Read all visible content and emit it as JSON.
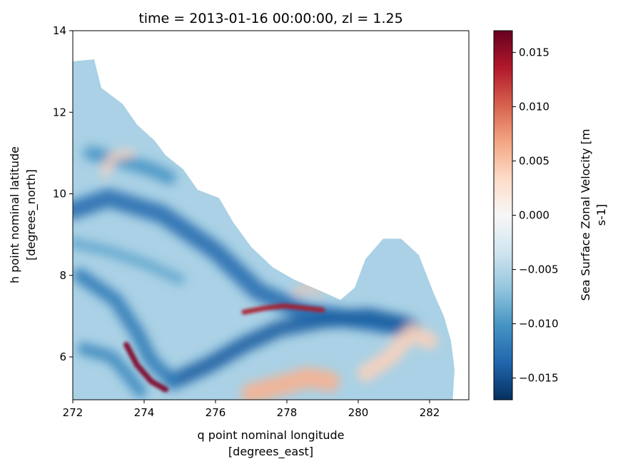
{
  "chart_data": {
    "type": "heatmap",
    "title": "time = 2013-01-16 00:00:00, zl = 1.25",
    "xlabel": "q point nominal longitude",
    "xlabel_units": "[degrees_east]",
    "ylabel": "h point nominal latitude",
    "ylabel_units": "[degrees_north]",
    "xlim": [
      272,
      283.1
    ],
    "ylim": [
      4.95,
      14
    ],
    "x_ticks": [
      272,
      274,
      276,
      278,
      280,
      282
    ],
    "x_tick_labels": [
      "272",
      "274",
      "276",
      "278",
      "280",
      "282"
    ],
    "y_ticks": [
      6,
      8,
      10,
      12,
      14
    ],
    "y_tick_labels": [
      "6",
      "8",
      "10",
      "12",
      "14"
    ],
    "colorbar": {
      "label_line1": "Sea Surface Zonal Velocity [m",
      "label_line2": "s-1]",
      "vmin": -0.017,
      "vmax": 0.017,
      "ticks": [
        -0.015,
        -0.01,
        -0.005,
        0,
        0.005,
        0.01,
        0.015
      ],
      "tick_labels": [
        "−0.015",
        "−0.010",
        "−0.005",
        "0.000",
        "0.005",
        "0.010",
        "0.015"
      ],
      "colormap": "RdBu_r",
      "colors": [
        "#053061",
        "#2166ac",
        "#4393c3",
        "#92c5de",
        "#d1e5f0",
        "#f7f7f7",
        "#fddbc7",
        "#f4a582",
        "#d6604d",
        "#b2182b",
        "#67001f"
      ]
    },
    "grid": false,
    "coast_outline": [
      [
        272,
        13.25
      ],
      [
        272.6,
        13.3
      ],
      [
        272.8,
        12.6
      ],
      [
        273.4,
        12.2
      ],
      [
        273.8,
        11.7
      ],
      [
        274.3,
        11.3
      ],
      [
        274.6,
        10.95
      ],
      [
        275.1,
        10.6
      ],
      [
        275.5,
        10.1
      ],
      [
        276.1,
        9.9
      ],
      [
        276.5,
        9.3
      ],
      [
        277.0,
        8.7
      ],
      [
        277.6,
        8.2
      ],
      [
        278.2,
        7.9
      ],
      [
        279.0,
        7.6
      ],
      [
        279.5,
        7.4
      ],
      [
        279.9,
        7.7
      ],
      [
        280.2,
        8.4
      ],
      [
        280.7,
        8.9
      ],
      [
        281.2,
        8.9
      ],
      [
        281.7,
        8.5
      ],
      [
        282.1,
        7.6
      ],
      [
        282.4,
        7.0
      ],
      [
        282.6,
        6.4
      ],
      [
        282.7,
        5.7
      ],
      [
        282.65,
        4.95
      ],
      [
        272,
        4.95
      ]
    ],
    "features": [
      {
        "kind": "band",
        "value": -0.013,
        "width": 0.45,
        "path": [
          [
            272,
            9.6
          ],
          [
            273.0,
            9.9
          ],
          [
            274.5,
            9.5
          ],
          [
            276.0,
            8.6
          ],
          [
            277.2,
            7.6
          ],
          [
            278.5,
            7.1
          ],
          [
            280.0,
            6.9
          ],
          [
            281.5,
            6.7
          ]
        ]
      },
      {
        "kind": "band",
        "value": -0.014,
        "width": 0.4,
        "path": [
          [
            274.8,
            5.4
          ],
          [
            275.8,
            5.8
          ],
          [
            276.8,
            6.3
          ],
          [
            277.8,
            6.7
          ],
          [
            279.0,
            6.9
          ],
          [
            280.3,
            7.0
          ],
          [
            281.3,
            6.8
          ]
        ]
      },
      {
        "kind": "band",
        "value": -0.012,
        "width": 0.35,
        "path": [
          [
            272.2,
            8.0
          ],
          [
            273.2,
            7.4
          ],
          [
            273.8,
            6.6
          ],
          [
            274.2,
            5.9
          ],
          [
            274.8,
            5.4
          ]
        ]
      },
      {
        "kind": "band",
        "value": -0.011,
        "width": 0.3,
        "path": [
          [
            272.3,
            6.2
          ],
          [
            273.1,
            6.0
          ],
          [
            273.5,
            5.6
          ],
          [
            273.9,
            5.15
          ]
        ]
      },
      {
        "kind": "band",
        "value": -0.01,
        "width": 0.35,
        "path": [
          [
            272.5,
            11.0
          ],
          [
            273.4,
            10.8
          ],
          [
            274.2,
            10.6
          ],
          [
            274.7,
            10.4
          ]
        ]
      },
      {
        "kind": "band",
        "value": -0.009,
        "width": 0.25,
        "path": [
          [
            272.0,
            8.8
          ],
          [
            273.0,
            8.6
          ],
          [
            274.0,
            8.3
          ],
          [
            275.0,
            7.9
          ]
        ]
      },
      {
        "kind": "band",
        "value": 0.016,
        "width": 0.14,
        "path": [
          [
            273.5,
            6.3
          ],
          [
            273.8,
            5.8
          ],
          [
            274.2,
            5.4
          ],
          [
            274.6,
            5.2
          ]
        ]
      },
      {
        "kind": "band",
        "value": 0.014,
        "width": 0.12,
        "path": [
          [
            276.8,
            7.1
          ],
          [
            277.4,
            7.2
          ],
          [
            277.9,
            7.25
          ],
          [
            278.5,
            7.2
          ],
          [
            279.0,
            7.15
          ]
        ]
      },
      {
        "kind": "band",
        "value": 0.006,
        "width": 0.5,
        "path": [
          [
            277.0,
            5.1
          ],
          [
            277.8,
            5.3
          ],
          [
            278.6,
            5.5
          ],
          [
            279.2,
            5.4
          ]
        ]
      },
      {
        "kind": "band",
        "value": 0.004,
        "width": 0.4,
        "path": [
          [
            280.2,
            5.6
          ],
          [
            280.9,
            6.0
          ],
          [
            281.5,
            6.6
          ],
          [
            282.0,
            6.4
          ]
        ]
      },
      {
        "kind": "band",
        "value": 0.004,
        "width": 0.2,
        "path": [
          [
            272.9,
            10.5
          ],
          [
            273.1,
            10.9
          ],
          [
            273.6,
            11.0
          ]
        ]
      },
      {
        "kind": "band",
        "value": 0.005,
        "width": 0.15,
        "path": [
          [
            278.3,
            7.6
          ],
          [
            278.6,
            7.7
          ],
          [
            278.9,
            7.6
          ]
        ]
      }
    ]
  }
}
